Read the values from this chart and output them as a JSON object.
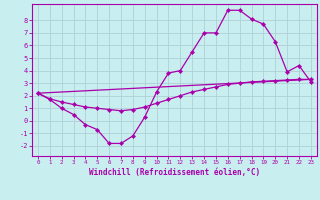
{
  "xlabel": "Windchill (Refroidissement éolien,°C)",
  "background_color": "#c8eef0",
  "grid_color": "#b0d0d8",
  "line_color": "#aa00aa",
  "xlim": [
    -0.5,
    23.5
  ],
  "ylim": [
    -2.8,
    9.3
  ],
  "yticks": [
    -2,
    -1,
    0,
    1,
    2,
    3,
    4,
    5,
    6,
    7,
    8
  ],
  "xticks": [
    0,
    1,
    2,
    3,
    4,
    5,
    6,
    7,
    8,
    9,
    10,
    11,
    12,
    13,
    14,
    15,
    16,
    17,
    18,
    19,
    20,
    21,
    22,
    23
  ],
  "series1_x": [
    0,
    1,
    2,
    3,
    4,
    5,
    6,
    7,
    8,
    9,
    10,
    11,
    12,
    13,
    14,
    15,
    16,
    17,
    18,
    19,
    20,
    21,
    22,
    23
  ],
  "series1_y": [
    2.2,
    1.7,
    1.0,
    0.5,
    -0.3,
    -0.7,
    -1.8,
    -1.8,
    -1.2,
    0.3,
    2.3,
    3.8,
    4.0,
    5.5,
    7.0,
    7.0,
    8.8,
    8.8,
    8.1,
    7.7,
    6.3,
    3.9,
    4.4,
    3.1
  ],
  "series2_x": [
    0,
    1,
    2,
    3,
    4,
    5,
    6,
    7,
    8,
    9,
    10,
    11,
    12,
    13,
    14,
    15,
    16,
    17,
    18,
    19,
    20,
    21,
    22,
    23
  ],
  "series2_y": [
    2.2,
    1.75,
    1.5,
    1.3,
    1.1,
    1.0,
    0.9,
    0.8,
    0.9,
    1.1,
    1.4,
    1.7,
    2.0,
    2.3,
    2.5,
    2.7,
    2.9,
    3.0,
    3.1,
    3.15,
    3.2,
    3.25,
    3.3,
    3.3
  ],
  "series3_x": [
    0,
    23
  ],
  "series3_y": [
    2.2,
    3.3
  ]
}
